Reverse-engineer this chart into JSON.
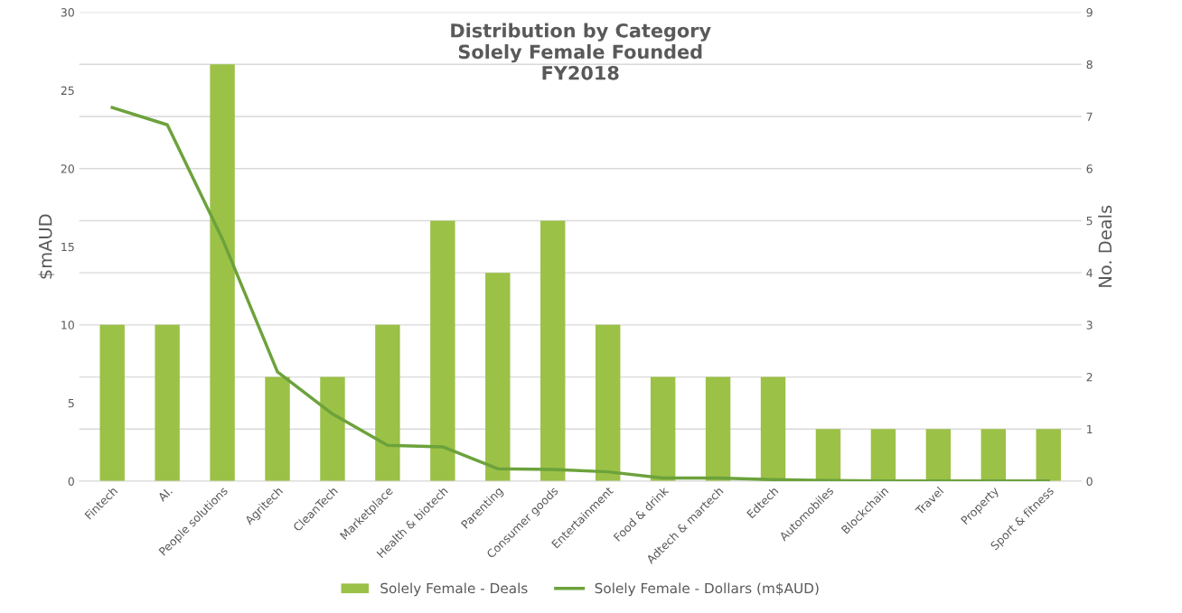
{
  "chart_data": {
    "type": "bar",
    "title": "Distribution by Category\nSolely Female Founded\nFY2018",
    "categories": [
      "Fintech",
      "AI.",
      "People solutions",
      "Agritech",
      "CleanTech",
      "Marketplace",
      "Health & biotech",
      "Parenting",
      "Consumer goods",
      "Entertainment",
      "Food & drink",
      "Adtech & martech",
      "Edtech",
      "Automobiles",
      "Blockchain",
      "Travel",
      "Property",
      "Sport & fitness"
    ],
    "series": [
      {
        "name": "Solely Female - Deals",
        "axis": "y2",
        "color": "#9bc146",
        "values": [
          3,
          3,
          8,
          2,
          2,
          3,
          5,
          4,
          5,
          3,
          2,
          2,
          2,
          1,
          1,
          1,
          1,
          1
        ]
      },
      {
        "name": "Solely Female - Dollars (m$AUD)",
        "type": "line",
        "color": "#6ca23c",
        "values": [
          23.9,
          22.8,
          15.5,
          7.0,
          4.3,
          2.3,
          2.2,
          0.8,
          0.75,
          0.6,
          0.2,
          0.2,
          0.1,
          0.05,
          0.02,
          0.01,
          0.01,
          0.01
        ]
      }
    ],
    "ylabel": "$mAUD",
    "y2label": "No. Deals",
    "ylim": [
      0,
      30
    ],
    "yticks": [
      0,
      5,
      10,
      15,
      20,
      25,
      30
    ],
    "y2lim": [
      0,
      9
    ],
    "y2ticks": [
      0,
      1,
      2,
      3,
      4,
      5,
      6,
      7,
      8,
      9
    ],
    "grid": "y",
    "legend": "bottom",
    "marker": "none",
    "line_style": "solid"
  }
}
